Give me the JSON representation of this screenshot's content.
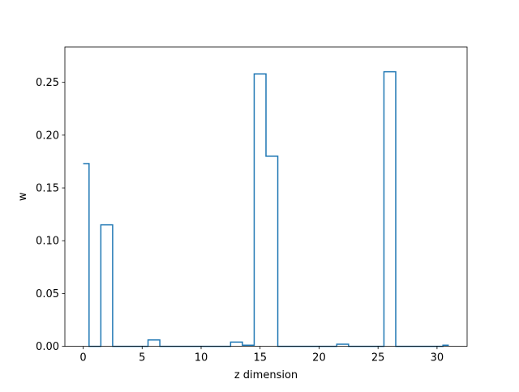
{
  "chart_data": {
    "type": "step",
    "title": "",
    "xlabel": "z dimension",
    "ylabel": "w",
    "xlim": [
      -1.55,
      32.55
    ],
    "ylim": [
      0,
      0.2835
    ],
    "xticks": [
      0,
      5,
      10,
      15,
      20,
      25,
      30
    ],
    "xtick_labels": [
      "0",
      "5",
      "10",
      "15",
      "20",
      "25",
      "30"
    ],
    "yticks": [
      0.0,
      0.05,
      0.1,
      0.15,
      0.2,
      0.25
    ],
    "ytick_labels": [
      "0.00",
      "0.05",
      "0.10",
      "0.15",
      "0.20",
      "0.25"
    ],
    "grid": false,
    "line_color": "#1f77b4",
    "x": [
      0,
      1,
      2,
      3,
      4,
      5,
      6,
      7,
      8,
      9,
      10,
      11,
      12,
      13,
      14,
      15,
      16,
      17,
      18,
      19,
      20,
      21,
      22,
      23,
      24,
      25,
      26,
      27,
      28,
      29,
      30,
      31
    ],
    "values": [
      0.173,
      0.0,
      0.115,
      0.0,
      0.0,
      0.0,
      0.006,
      0.0,
      0.0,
      0.0,
      0.0,
      0.0,
      0.0,
      0.004,
      0.001,
      0.258,
      0.18,
      0.0,
      0.0,
      0.0,
      0.0,
      0.0,
      0.002,
      0.0,
      0.0,
      0.0,
      0.26,
      0.0,
      0.0,
      0.0,
      0.0,
      0.001
    ]
  }
}
